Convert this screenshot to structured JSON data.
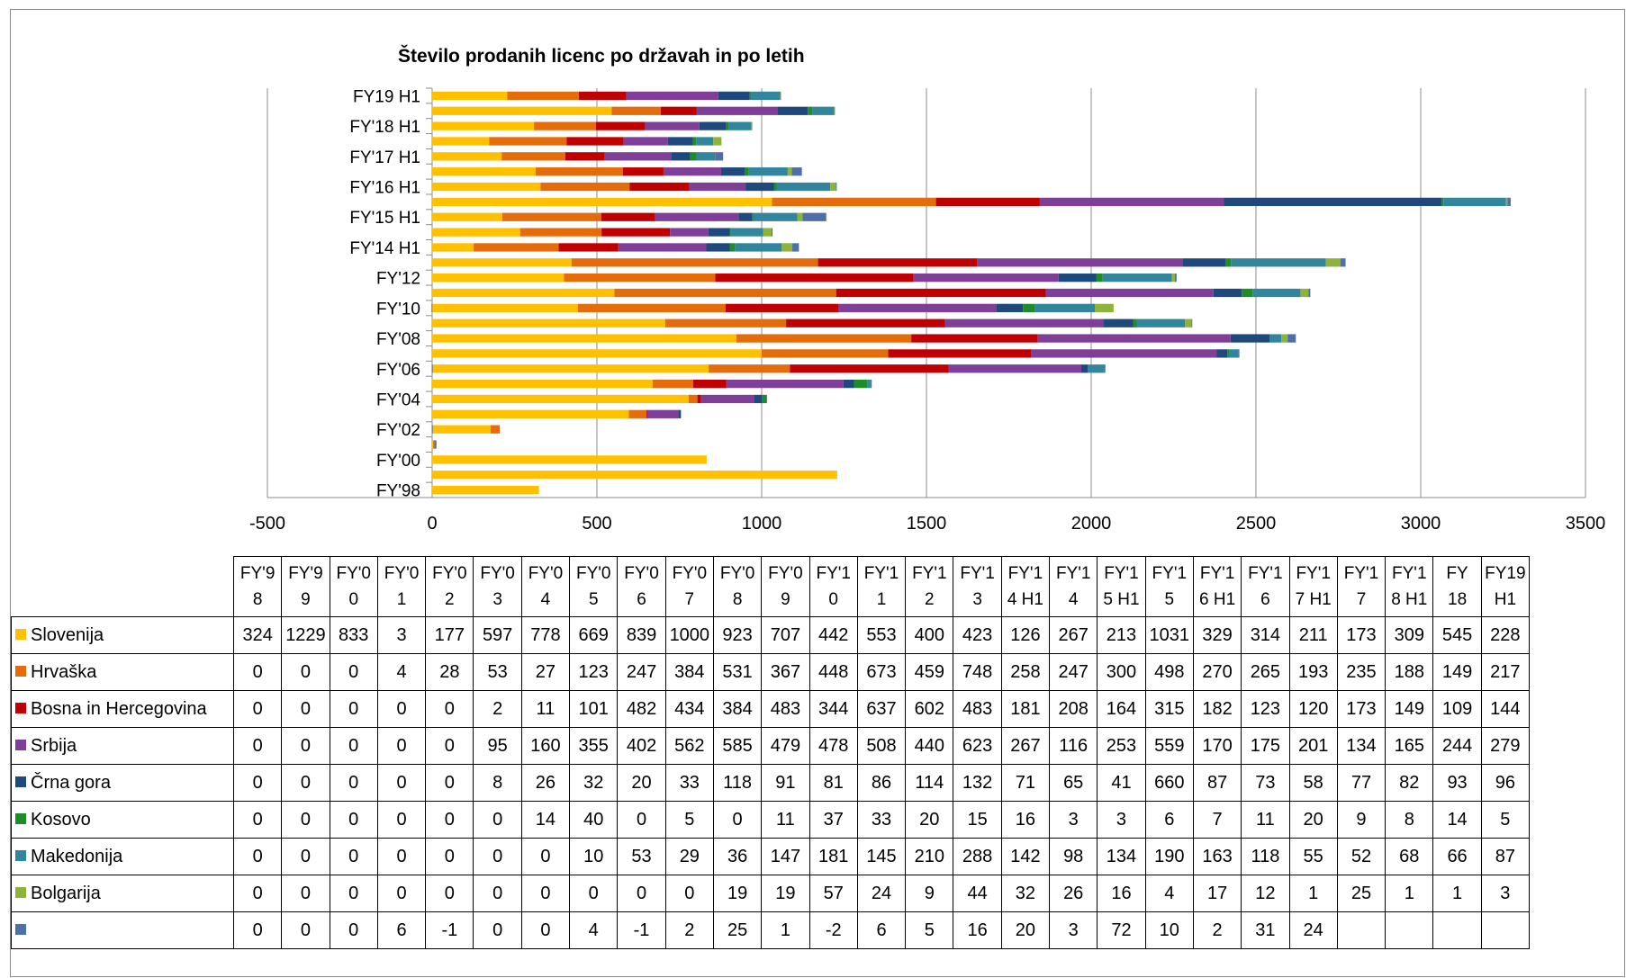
{
  "chart_data": {
    "type": "bar",
    "orientation": "horizontal",
    "stacked": true,
    "title": "Število prodanih licenc po državah in po letih",
    "categories": [
      "FY'98",
      "FY'99",
      "FY'00",
      "FY'01",
      "FY'02",
      "FY'03",
      "FY'04",
      "FY'05",
      "FY'06",
      "FY'07",
      "FY'08",
      "FY'09",
      "FY'10",
      "FY'11",
      "FY'12",
      "FY'13",
      "FY'14 H1",
      "FY'14",
      "FY'15 H1",
      "FY'15",
      "FY'16 H1",
      "FY'16",
      "FY'17 H1",
      "FY'17",
      "FY'18 H1",
      "FY 18",
      "FY19 H1"
    ],
    "header_labels": [
      [
        "FY'9",
        "8"
      ],
      [
        "FY'9",
        "9"
      ],
      [
        "FY'0",
        "0"
      ],
      [
        "FY'0",
        "1"
      ],
      [
        "FY'0",
        "2"
      ],
      [
        "FY'0",
        "3"
      ],
      [
        "FY'0",
        "4"
      ],
      [
        "FY'0",
        "5"
      ],
      [
        "FY'0",
        "6"
      ],
      [
        "FY'0",
        "7"
      ],
      [
        "FY'0",
        "8"
      ],
      [
        "FY'0",
        "9"
      ],
      [
        "FY'1",
        "0"
      ],
      [
        "FY'1",
        "1"
      ],
      [
        "FY'1",
        "2"
      ],
      [
        "FY'1",
        "3"
      ],
      [
        "FY'1",
        "4 H1"
      ],
      [
        "FY'1",
        "4"
      ],
      [
        "FY'1",
        "5 H1"
      ],
      [
        "FY'1",
        "5"
      ],
      [
        "FY'1",
        "6 H1"
      ],
      [
        "FY'1",
        "6"
      ],
      [
        "FY'1",
        "7 H1"
      ],
      [
        "FY'1",
        "7"
      ],
      [
        "FY'1",
        "8 H1"
      ],
      [
        "FY",
        "18"
      ],
      [
        "FY19",
        "H1"
      ]
    ],
    "y_tick_labels": [
      "FY'98",
      "",
      "FY'00",
      "",
      "FY'02",
      "",
      "FY'04",
      "",
      "FY'06",
      "",
      "FY'08",
      "",
      "FY'10",
      "",
      "FY'12",
      "",
      "FY'14 H1",
      "",
      "FY'15 H1",
      "",
      "FY'16 H1",
      "",
      "FY'17 H1",
      "",
      "FY'18 H1",
      "",
      "FY19 H1"
    ],
    "xlim": [
      -500,
      3500
    ],
    "x_ticks": [
      -500,
      0,
      500,
      1000,
      1500,
      2000,
      2500,
      3000,
      3500
    ],
    "x_tick_labels": [
      "-500",
      "0",
      "500",
      "1000",
      "1500",
      "2000",
      "2500",
      "3000",
      "3500"
    ],
    "grid": "vertical",
    "legend": "data-table",
    "series": [
      {
        "name": "Slovenija",
        "color": "#FFC000",
        "values": [
          324,
          1229,
          833,
          3,
          177,
          597,
          778,
          669,
          839,
          1000,
          923,
          707,
          442,
          553,
          400,
          423,
          126,
          267,
          213,
          1031,
          329,
          314,
          211,
          173,
          309,
          545,
          228
        ],
        "cells": [
          "324",
          "1229",
          "833",
          "3",
          "177",
          "597",
          "778",
          "669",
          "839",
          "1000",
          "923",
          "707",
          "442",
          "553",
          "400",
          "423",
          "126",
          "267",
          "213",
          "1031",
          "329",
          "314",
          "211",
          "173",
          "309",
          "545",
          "228"
        ]
      },
      {
        "name": "Hrvaška",
        "color": "#E46C0A",
        "values": [
          0,
          0,
          0,
          4,
          28,
          53,
          27,
          123,
          247,
          384,
          531,
          367,
          448,
          673,
          459,
          748,
          258,
          247,
          300,
          498,
          270,
          265,
          193,
          235,
          188,
          149,
          217
        ],
        "cells": [
          "0",
          "0",
          "0",
          "4",
          "28",
          "53",
          "27",
          "123",
          "247",
          "384",
          "531",
          "367",
          "448",
          "673",
          "459",
          "748",
          "258",
          "247",
          "300",
          "498",
          "270",
          "265",
          "193",
          "235",
          "188",
          "149",
          "217"
        ]
      },
      {
        "name": "Bosna in Hercegovina",
        "color": "#C00000",
        "values": [
          0,
          0,
          0,
          0,
          0,
          2,
          11,
          101,
          482,
          434,
          384,
          483,
          344,
          637,
          602,
          483,
          181,
          208,
          164,
          315,
          182,
          123,
          120,
          173,
          149,
          109,
          144
        ],
        "cells": [
          "0",
          "0",
          "0",
          "0",
          "0",
          "2",
          "11",
          "101",
          "482",
          "434",
          "384",
          "483",
          "344",
          "637",
          "602",
          "483",
          "181",
          "208",
          "164",
          "315",
          "182",
          "123",
          "120",
          "173",
          "149",
          "109",
          "144"
        ]
      },
      {
        "name": "Srbija",
        "color": "#7F3F98",
        "values": [
          0,
          0,
          0,
          0,
          0,
          95,
          160,
          355,
          402,
          562,
          585,
          479,
          478,
          508,
          440,
          623,
          267,
          116,
          253,
          559,
          170,
          175,
          201,
          134,
          165,
          244,
          279
        ],
        "cells": [
          "0",
          "0",
          "0",
          "0",
          "0",
          "95",
          "160",
          "355",
          "402",
          "562",
          "585",
          "479",
          "478",
          "508",
          "440",
          "623",
          "267",
          "116",
          "253",
          "559",
          "170",
          "175",
          "201",
          "134",
          "165",
          "244",
          "279"
        ]
      },
      {
        "name": "Črna gora",
        "color": "#1F497D",
        "values": [
          0,
          0,
          0,
          0,
          0,
          8,
          26,
          32,
          20,
          33,
          118,
          91,
          81,
          86,
          114,
          132,
          71,
          65,
          41,
          660,
          87,
          73,
          58,
          77,
          82,
          93,
          96
        ],
        "cells": [
          "0",
          "0",
          "0",
          "0",
          "0",
          "8",
          "26",
          "32",
          "20",
          "33",
          "118",
          "91",
          "81",
          "86",
          "114",
          "132",
          "71",
          "65",
          "41",
          "660",
          "87",
          "73",
          "58",
          "77",
          "82",
          "93",
          "96"
        ]
      },
      {
        "name": "Kosovo",
        "color": "#1E8C28",
        "values": [
          0,
          0,
          0,
          0,
          0,
          0,
          14,
          40,
          0,
          5,
          0,
          11,
          37,
          33,
          20,
          15,
          16,
          3,
          3,
          6,
          7,
          11,
          20,
          9,
          8,
          14,
          5
        ],
        "cells": [
          "0",
          "0",
          "0",
          "0",
          "0",
          "0",
          "14",
          "40",
          "0",
          "5",
          "0",
          "11",
          "37",
          "33",
          "20",
          "15",
          "16",
          "3",
          "3",
          "6",
          "7",
          "11",
          "20",
          "9",
          "8",
          "14",
          "5"
        ]
      },
      {
        "name": "Makedonija",
        "color": "#31859C",
        "values": [
          0,
          0,
          0,
          0,
          0,
          0,
          0,
          10,
          53,
          29,
          36,
          147,
          181,
          145,
          210,
          288,
          142,
          98,
          134,
          190,
          163,
          118,
          55,
          52,
          68,
          66,
          87
        ],
        "cells": [
          "0",
          "0",
          "0",
          "0",
          "0",
          "0",
          "0",
          "10",
          "53",
          "29",
          "36",
          "147",
          "181",
          "145",
          "210",
          "288",
          "142",
          "98",
          "134",
          "190",
          "163",
          "118",
          "55",
          "52",
          "68",
          "66",
          "87"
        ]
      },
      {
        "name": "Bolgarija",
        "color": "#8DB33A",
        "values": [
          0,
          0,
          0,
          0,
          0,
          0,
          0,
          0,
          0,
          0,
          19,
          19,
          57,
          24,
          9,
          44,
          32,
          26,
          16,
          4,
          17,
          12,
          1,
          25,
          1,
          1,
          3
        ],
        "cells": [
          "0",
          "0",
          "0",
          "0",
          "0",
          "0",
          "0",
          "0",
          "0",
          "0",
          "19",
          "19",
          "57",
          "24",
          "9",
          "44",
          "32",
          "26",
          "16",
          "4",
          "17",
          "12",
          "1",
          "25",
          "1",
          "1",
          "3"
        ]
      },
      {
        "name": "",
        "color": "#4F6FA8",
        "values": [
          0,
          0,
          0,
          6,
          -1,
          0,
          0,
          4,
          -1,
          2,
          25,
          1,
          -2,
          6,
          5,
          16,
          20,
          3,
          72,
          10,
          2,
          31,
          24,
          null,
          null,
          null,
          null
        ],
        "cells": [
          "0",
          "0",
          "0",
          "6",
          "-1",
          "0",
          "0",
          "4",
          "-1",
          "2",
          "25",
          "1",
          "-2",
          "6",
          "5",
          "16",
          "20",
          "3",
          "72",
          "10",
          "2",
          "31",
          "24",
          "",
          "",
          "",
          ""
        ]
      }
    ]
  }
}
